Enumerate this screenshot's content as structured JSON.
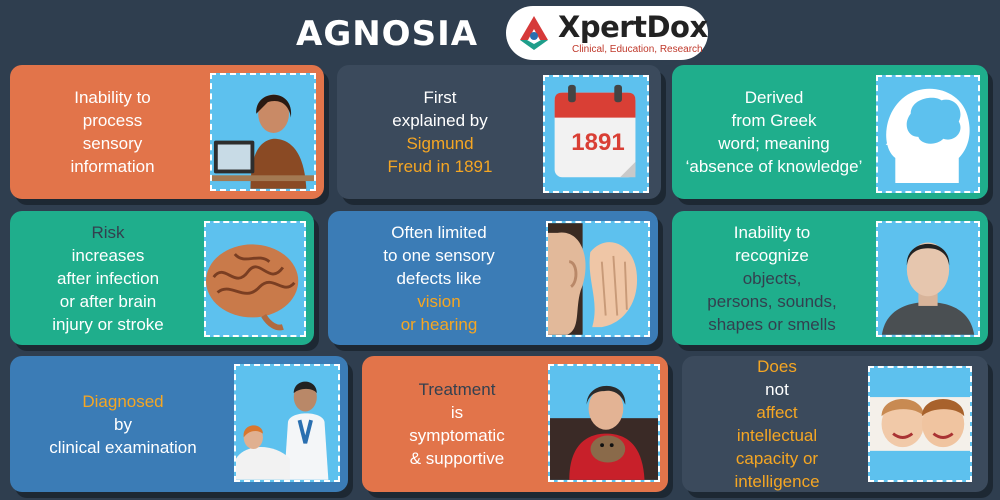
{
  "header": {
    "title": "AGNOSIA",
    "logo_brand": "XpertDox",
    "logo_tagline": "Clinical, Education, Research"
  },
  "colors": {
    "background": "#2f3e4f",
    "orange_card": "#e2744a",
    "slate_card": "#3b4a5c",
    "teal_card": "#1fae8c",
    "blue_card": "#3b7cb6",
    "highlight_orange": "#f5a623",
    "picture_frame": "#5dc1ee"
  },
  "cards": [
    {
      "lines": [
        "Inability to",
        "process",
        "sensory",
        "information"
      ],
      "image": "woman-with-laptop"
    },
    {
      "lines": [
        "First",
        "explained by",
        "Sigmund",
        "Freud in 1891"
      ],
      "calendar_year": "1891",
      "image": "calendar-1891"
    },
    {
      "lines": [
        "Derived",
        "from Greek",
        "word; meaning",
        "‘absence of knowledge’"
      ],
      "image": "head-with-brain"
    },
    {
      "line1_a": "Risk",
      "line1_b": " increases",
      "lines": [
        "after infection",
        "or after brain",
        "injury or stroke"
      ],
      "image": "brain"
    },
    {
      "lines": [
        "Often limited",
        "to one sensory"
      ],
      "line3_a": "defects like ",
      "line3_b": "vision",
      "line4": "or hearing",
      "image": "ear-listening"
    },
    {
      "line1": "Inability to",
      "line2_a": "recognize",
      "line2_b": " objects,",
      "lines": [
        "persons, sounds,",
        "shapes or smells"
      ],
      "image": "blurred-face-man"
    },
    {
      "line1_a": "Diagnosed",
      "line1_b": " by",
      "line2": "clinical examination",
      "image": "doctor-and-patient"
    },
    {
      "line1_a": "Treatment",
      "line1_b": " is",
      "lines": [
        "symptomatic",
        "& supportive"
      ],
      "image": "smiling-woman-with-dog"
    },
    {
      "line1_a": "Does",
      "line1_b": " not ",
      "line1_c": "affect",
      "lines": [
        "intellectual",
        "capacity or",
        "intelligence"
      ],
      "image": "two-smiling-children"
    }
  ]
}
